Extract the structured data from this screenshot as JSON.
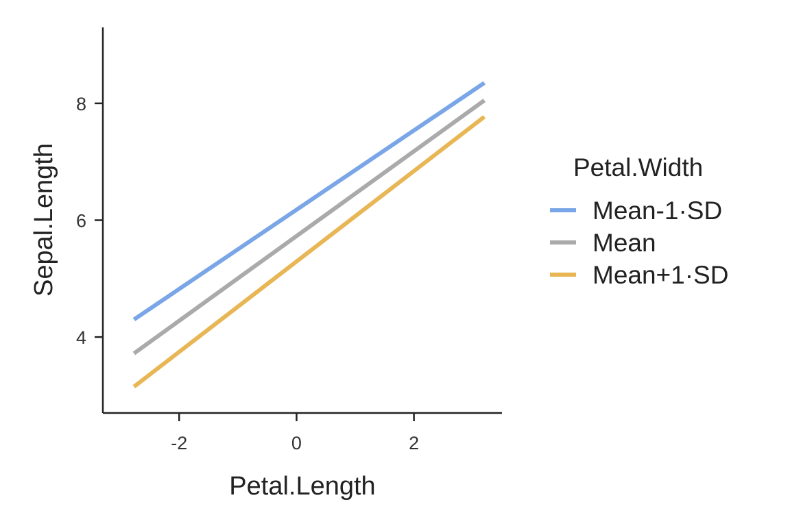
{
  "chart_data": {
    "type": "line",
    "xlabel": "Petal.Length",
    "ylabel": "Sepal.Length",
    "xlim": [
      -3.3,
      3.5
    ],
    "ylim": [
      2.7,
      9.3
    ],
    "xticks": [
      -2,
      0,
      2
    ],
    "xtick_labels": [
      "-2",
      "0",
      "2"
    ],
    "yticks": [
      4,
      6,
      8
    ],
    "ytick_labels": [
      "4",
      "6",
      "8"
    ],
    "grid": false,
    "legend": {
      "title": "Petal.Width",
      "placement": "right"
    },
    "series": [
      {
        "name": "Mean-1·SD",
        "color": "#7aa6e8",
        "x": [
          -2.77,
          3.2
        ],
        "y": [
          4.3,
          8.35
        ]
      },
      {
        "name": "Mean",
        "color": "#aaaaaa",
        "x": [
          -2.77,
          3.2
        ],
        "y": [
          3.72,
          8.05
        ]
      },
      {
        "name": "Mean+1·SD",
        "color": "#e8b654",
        "x": [
          -2.77,
          3.2
        ],
        "y": [
          3.15,
          7.77
        ]
      }
    ]
  }
}
